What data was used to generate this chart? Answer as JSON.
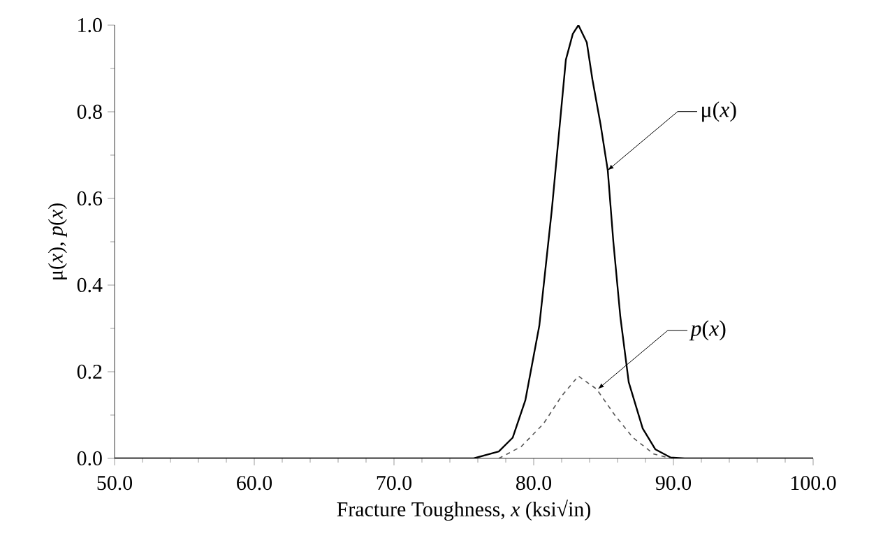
{
  "chart_data": {
    "type": "line",
    "xlabel": "Fracture Toughness, *x* (ksi√in)",
    "ylabel": "μ(*x*), *p*(*x*)",
    "xlim": [
      50,
      100
    ],
    "ylim": [
      0,
      1
    ],
    "xticks": [
      {
        "value": 50,
        "label": "50.0"
      },
      {
        "value": 60,
        "label": "60.0"
      },
      {
        "value": 70,
        "label": "70.0"
      },
      {
        "value": 80,
        "label": "80.0"
      },
      {
        "value": 90,
        "label": "90.0"
      },
      {
        "value": 100,
        "label": "100.0"
      }
    ],
    "yticks": [
      {
        "value": 0,
        "label": "0.0"
      },
      0.2,
      0.4,
      0.6,
      0.8,
      {
        "value": 1,
        "label": "1.0"
      }
    ],
    "series": [
      {
        "color": "#000000",
        "line_style": "solid",
        "x": [
          50,
          75.7,
          77.5,
          78.5,
          79.4,
          80.4,
          81.3,
          82.3,
          82.8,
          83.2,
          83.8,
          84.2,
          84.8,
          85.3,
          85.7,
          86.2,
          86.8,
          87.8,
          88.7,
          89.8,
          90.8,
          100
        ],
        "values": [
          0,
          0,
          0.016,
          0.048,
          0.134,
          0.306,
          0.575,
          0.92,
          0.98,
          1.0,
          0.96,
          0.875,
          0.768,
          0.665,
          0.5,
          0.327,
          0.176,
          0.069,
          0.021,
          0.002,
          0,
          0
        ]
      },
      {
        "color": "#555555",
        "line_style": "dashed",
        "x": [
          77.5,
          79.1,
          80.7,
          82.0,
          83.2,
          84.5,
          85.8,
          87.1,
          88.6,
          89.8
        ],
        "values": [
          0,
          0.027,
          0.08,
          0.144,
          0.19,
          0.16,
          0.1,
          0.048,
          0.01,
          0
        ]
      }
    ],
    "annotations": [
      {
        "text": "μ(*x*)",
        "x": 85.3,
        "y": 0.665
      },
      {
        "text": "*p*(*x*)",
        "x": 84.6,
        "y": 0.16
      }
    ]
  }
}
